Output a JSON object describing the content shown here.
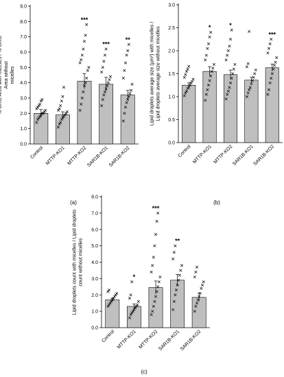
{
  "panels": {
    "a": {
      "label": "(a)"
    },
    "b": {
      "label": "(b)"
    },
    "c": {
      "label": "(c)"
    }
  },
  "colors": {
    "bar_fill": "#bfbfbf",
    "bar_stroke": "#000000",
    "point_color": "#000000",
    "axis_color": "#000000"
  },
  "chart_data": [
    {
      "id": "a",
      "type": "bar",
      "ylabel": "% ORO Area with micelles / % ORO Area without micelles",
      "ylabel_lines": [
        "% ORO Area with micelles / % ORO",
        "Area without",
        "micelles"
      ],
      "ylim": [
        0,
        9
      ],
      "yticks": [
        "0.0",
        "1.0",
        "2.0",
        "3.0",
        "4.0",
        "5.0",
        "6.0",
        "7.0",
        "8.0",
        "9.0"
      ],
      "categories": [
        "Control",
        "MTTP-KO1",
        "MTTP-KO2",
        "SAR1B-KO1",
        "SAR1B-KO2"
      ],
      "values": [
        2.0,
        1.9,
        4.1,
        3.9,
        3.2
      ],
      "errors": [
        0.25,
        0.2,
        0.5,
        0.45,
        0.3
      ],
      "significance": [
        "",
        "",
        "***",
        "***",
        "**"
      ],
      "points": [
        [
          1.4,
          1.6,
          1.7,
          1.8,
          1.9,
          2.0,
          2.0,
          2.1,
          2.2,
          2.3,
          2.4,
          2.5,
          2.6,
          2.8,
          2.9
        ],
        [
          1.1,
          1.3,
          1.4,
          1.6,
          1.7,
          1.8,
          1.9,
          2.0,
          2.1,
          2.2,
          2.3,
          2.5,
          2.8,
          3.1,
          3.7
        ],
        [
          2.2,
          2.6,
          3.0,
          3.4,
          3.8,
          4.0,
          4.3,
          4.8,
          5.0,
          5.3,
          5.5,
          5.8,
          6.2,
          6.7,
          7.1,
          7.8
        ],
        [
          2.5,
          2.9,
          3.2,
          3.4,
          3.6,
          3.8,
          4.0,
          4.2,
          4.4,
          4.7,
          5.0,
          5.4,
          5.8,
          6.2
        ],
        [
          1.5,
          2.0,
          2.4,
          2.7,
          2.9,
          3.1,
          3.3,
          3.5,
          3.9,
          4.3,
          4.8,
          5.3,
          5.8,
          6.1,
          6.5
        ]
      ]
    },
    {
      "id": "b",
      "type": "bar",
      "ylabel": "Lipid droplets average size (µm²) with micelles / Lipid droplets average size without micelles",
      "ylabel_lines": [
        "Lipid droplets average size (µm²) with micelles /",
        "Lipid droplets average size without micelles"
      ],
      "ylim": [
        0,
        3
      ],
      "yticks": [
        "0.0",
        "0.5",
        "1.0",
        "1.5",
        "2.0",
        "2.5",
        "3.0"
      ],
      "categories": [
        "Control",
        "MTTP-KO1",
        "MTTP-KO2",
        "SAR1B-KO1",
        "SAR1B-KO2"
      ],
      "values": [
        1.25,
        1.55,
        1.48,
        1.36,
        1.63
      ],
      "errors": [
        0.05,
        0.1,
        0.1,
        0.06,
        0.08
      ],
      "significance": [
        "",
        "*",
        "*",
        "",
        "***"
      ],
      "points": [
        [
          1.02,
          1.08,
          1.12,
          1.18,
          1.2,
          1.25,
          1.3,
          1.33,
          1.38,
          1.42,
          1.48,
          1.55,
          1.6,
          1.66
        ],
        [
          0.92,
          1.05,
          1.15,
          1.25,
          1.35,
          1.45,
          1.55,
          1.62,
          1.7,
          1.8,
          1.9,
          2.05,
          2.15,
          2.3,
          2.4
        ],
        [
          0.95,
          1.05,
          1.12,
          1.2,
          1.3,
          1.4,
          1.5,
          1.6,
          1.7,
          1.8,
          1.9,
          2.0,
          2.1,
          2.25,
          2.45
        ],
        [
          1.0,
          1.08,
          1.15,
          1.2,
          1.28,
          1.35,
          1.42,
          1.5,
          1.58,
          1.65,
          1.72,
          2.42
        ],
        [
          1.05,
          1.15,
          1.3,
          1.4,
          1.5,
          1.6,
          1.68,
          1.75,
          1.85,
          1.95,
          2.05,
          2.15,
          2.25
        ]
      ]
    },
    {
      "id": "c",
      "type": "bar",
      "ylabel": "Lipid droplets count with micelles / Lipid droplets count without micelles",
      "ylabel_lines": [
        "Lipid droplets count with micelles / Lipid droplets",
        "count without micelles"
      ],
      "ylim": [
        0,
        8
      ],
      "yticks": [
        "0.0",
        "1.0",
        "2.0",
        "3.0",
        "4.0",
        "5.0",
        "6.0",
        "7.0",
        "8.0"
      ],
      "categories": [
        "Control",
        "MTTP-KO1",
        "MTTP-KO2",
        "SAR1B-KO1",
        "SAR1B-KO2"
      ],
      "values": [
        1.7,
        1.3,
        2.45,
        2.9,
        1.85
      ],
      "errors": [
        0.1,
        0.15,
        0.4,
        0.35,
        0.25
      ],
      "significance": [
        "",
        "*",
        "***",
        "**",
        ""
      ],
      "points": [
        [
          1.3,
          1.4,
          1.5,
          1.6,
          1.7,
          1.8,
          1.9,
          2.0,
          2.1,
          2.2,
          2.3
        ],
        [
          0.6,
          0.8,
          0.9,
          1.0,
          1.1,
          1.2,
          1.3,
          1.4,
          1.6,
          1.8,
          2.0,
          2.8
        ],
        [
          0.8,
          1.0,
          1.3,
          1.6,
          1.9,
          2.2,
          2.5,
          2.8,
          3.1,
          3.4,
          3.8,
          4.3,
          5.0,
          5.7,
          6.5,
          7.0
        ],
        [
          1.1,
          1.6,
          2.0,
          2.3,
          2.6,
          2.9,
          3.2,
          3.5,
          3.8,
          4.2,
          4.6,
          5.0
        ],
        [
          1.0,
          1.3,
          1.5,
          1.7,
          1.9,
          2.1,
          2.4,
          2.6,
          2.8,
          3.1,
          3.4,
          3.7
        ]
      ]
    }
  ]
}
